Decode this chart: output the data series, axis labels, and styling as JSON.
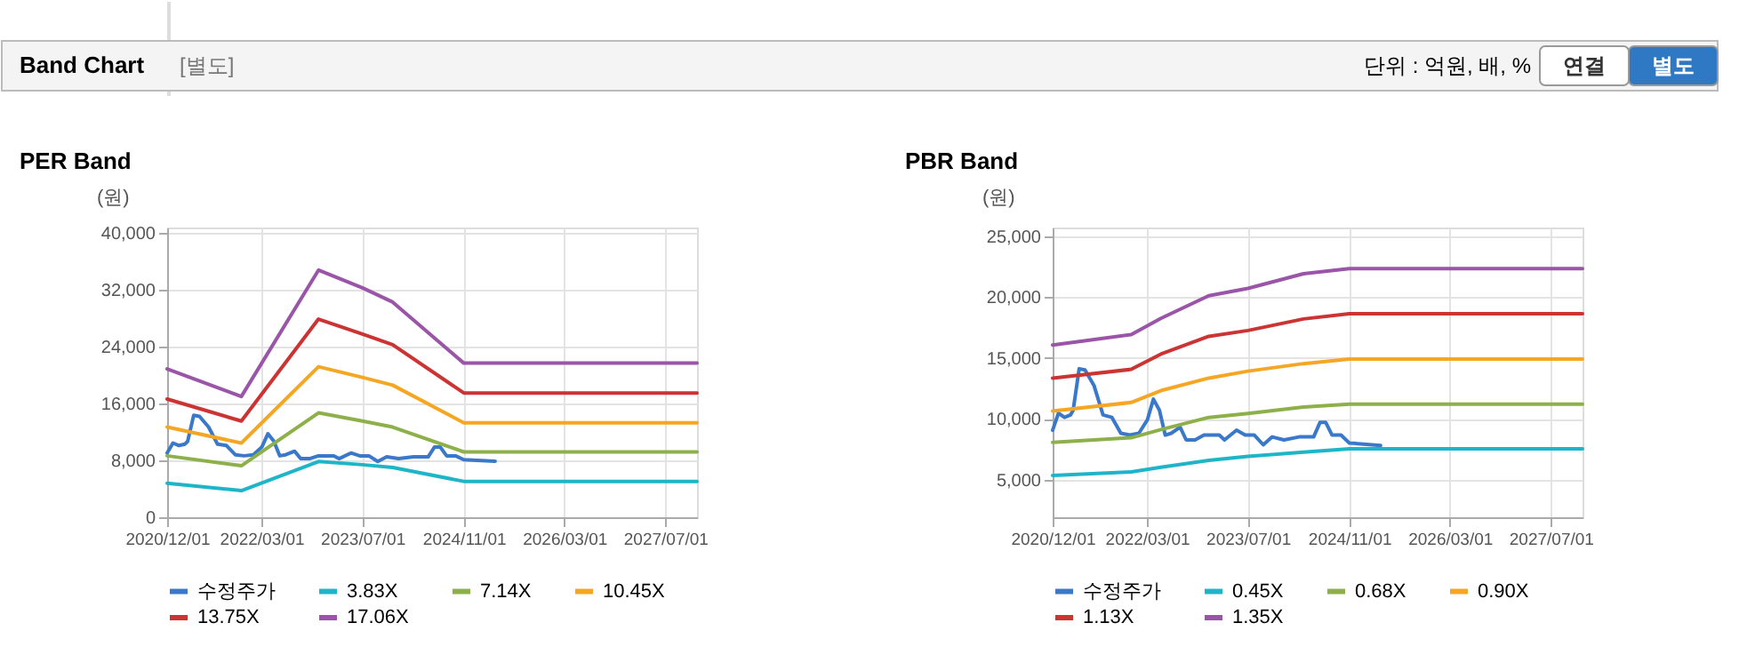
{
  "chart_data": [
    {
      "type": "line",
      "title": "PER Band",
      "annotations": [
        "Band Chart",
        "[별도]",
        "단위 : 억원, 배, %",
        "연결",
        "별도"
      ],
      "ylabel": "(원)",
      "xlim": [
        "2020-12-01",
        "2027-12-01"
      ],
      "xticks": [
        {
          "value": "2020-12-01",
          "label": "2020/12/01"
        },
        {
          "value": "2022-03-01",
          "label": "2022/03/01"
        },
        {
          "value": "2023-07-01",
          "label": "2023/07/01"
        },
        {
          "value": "2024-11-01",
          "label": "2024/11/01"
        },
        {
          "value": "2026-03-01",
          "label": "2026/03/01"
        },
        {
          "value": "2027-07-01",
          "label": "2027/07/01"
        }
      ],
      "ylim": [
        0,
        40800
      ],
      "yticks": [
        0,
        {
          "value": 8000,
          "label": "8,000"
        },
        {
          "value": 16000,
          "label": "16,000"
        },
        {
          "value": 24000,
          "label": "24,000"
        },
        {
          "value": 32000,
          "label": "32,000"
        },
        {
          "value": 40000,
          "label": "40,000"
        }
      ],
      "grid": true,
      "legend": "bottom",
      "marker": "none",
      "line_style": "solid",
      "series": [
        {
          "name": "수정주가",
          "color": "#3a78c9",
          "x": [
            "2020-12-01",
            "2020-12-29",
            "2021-01-27",
            "2021-02-25",
            "2021-03-10",
            "2021-04-08",
            "2021-05-06",
            "2021-06-19",
            "2021-08-01",
            "2021-09-13",
            "2021-10-26",
            "2021-12-08",
            "2022-01-21",
            "2022-03-03",
            "2022-04-01",
            "2022-04-30",
            "2022-05-28",
            "2022-06-26",
            "2022-08-08",
            "2022-09-06",
            "2022-10-19",
            "2022-12-01",
            "2023-02-13",
            "2023-03-10",
            "2023-05-07",
            "2023-06-18",
            "2023-08-01",
            "2023-09-13",
            "2023-10-26",
            "2023-12-22",
            "2024-03-04",
            "2024-05-13",
            "2024-06-13",
            "2024-07-10",
            "2024-08-10",
            "2024-09-22",
            "2024-11-01",
            "2025-04-01"
          ],
          "values": [
            9050,
            10450,
            10100,
            10300,
            10700,
            14350,
            14200,
            12700,
            10300,
            10100,
            8800,
            8650,
            8800,
            9900,
            11750,
            10700,
            8650,
            8800,
            9300,
            8250,
            8250,
            8650,
            8650,
            8250,
            9050,
            8650,
            8650,
            7850,
            8500,
            8250,
            8500,
            8500,
            9900,
            9900,
            8650,
            8650,
            8100,
            7900
          ]
        },
        {
          "name": "3.83X",
          "color": "#1fb5c9",
          "x": [
            "2020-12-01",
            "2021-11-24",
            "2022-12-01",
            "2023-07-01",
            "2023-11-24",
            "2024-11-01",
            "2027-12-01"
          ],
          "values": [
            4800,
            3750,
            7850,
            7400,
            7000,
            5050,
            5050
          ]
        },
        {
          "name": "7.14X",
          "color": "#8db04a",
          "x": [
            "2020-12-01",
            "2021-11-24",
            "2022-12-01",
            "2023-07-01",
            "2023-11-24",
            "2024-11-01",
            "2027-12-01"
          ],
          "values": [
            8650,
            7250,
            14700,
            13550,
            12700,
            9200,
            9200
          ]
        },
        {
          "name": "10.45X",
          "color": "#f5a623",
          "x": [
            "2020-12-01",
            "2021-11-24",
            "2022-12-01",
            "2023-07-01",
            "2023-11-24",
            "2024-11-01",
            "2027-12-01"
          ],
          "values": [
            12700,
            10450,
            21200,
            19700,
            18600,
            13300,
            13300
          ]
        },
        {
          "name": "13.75X",
          "color": "#cc3333",
          "x": [
            "2020-12-01",
            "2021-11-24",
            "2022-12-01",
            "2023-07-01",
            "2023-11-24",
            "2024-11-01",
            "2027-12-01"
          ],
          "values": [
            16650,
            13550,
            27900,
            25800,
            24300,
            17500,
            17500
          ]
        },
        {
          "name": "17.06X",
          "color": "#9a55a8",
          "x": [
            "2020-12-01",
            "2021-11-24",
            "2022-12-01",
            "2023-07-01",
            "2023-11-24",
            "2024-11-01",
            "2027-12-01"
          ],
          "values": [
            20900,
            17000,
            34800,
            32300,
            30300,
            21700,
            21700
          ]
        }
      ]
    },
    {
      "type": "line",
      "title": "PBR Band",
      "ylabel": "(원)",
      "xlim": [
        "2020-12-01",
        "2027-12-01"
      ],
      "xticks": [
        {
          "value": "2020-12-01",
          "label": "2020/12/01"
        },
        {
          "value": "2022-03-01",
          "label": "2022/03/01"
        },
        {
          "value": "2023-07-01",
          "label": "2023/07/01"
        },
        {
          "value": "2024-11-01",
          "label": "2024/11/01"
        },
        {
          "value": "2026-03-01",
          "label": "2026/03/01"
        },
        {
          "value": "2027-07-01",
          "label": "2027/07/01"
        }
      ],
      "ylim": [
        1900,
        25700
      ],
      "yticks": [
        {
          "value": 5000,
          "label": "5,000"
        },
        {
          "value": 10000,
          "label": "10,000"
        },
        {
          "value": 15000,
          "label": "15,000"
        },
        {
          "value": 20000,
          "label": "20,000"
        },
        {
          "value": 25000,
          "label": "25,000"
        }
      ],
      "grid": true,
      "legend": "bottom",
      "marker": "none",
      "line_style": "solid",
      "series": [
        {
          "name": "수정주가",
          "color": "#3a78c9",
          "x": [
            "2020-12-01",
            "2020-12-29",
            "2021-01-27",
            "2021-02-25",
            "2021-03-10",
            "2021-04-08",
            "2021-05-06",
            "2021-06-19",
            "2021-08-01",
            "2021-09-13",
            "2021-10-26",
            "2021-12-08",
            "2022-01-21",
            "2022-03-03",
            "2022-04-01",
            "2022-04-30",
            "2022-05-28",
            "2022-06-26",
            "2022-08-08",
            "2022-09-06",
            "2022-10-19",
            "2022-12-01",
            "2023-02-13",
            "2023-03-10",
            "2023-05-07",
            "2023-06-18",
            "2023-08-01",
            "2023-09-13",
            "2023-10-26",
            "2023-12-22",
            "2024-03-04",
            "2024-05-13",
            "2024-06-13",
            "2024-07-10",
            "2024-08-10",
            "2024-09-22",
            "2024-11-01",
            "2025-04-01"
          ],
          "values": [
            9050,
            10450,
            10100,
            10300,
            10700,
            14100,
            14000,
            12700,
            10300,
            10100,
            8800,
            8650,
            8800,
            9900,
            11600,
            10700,
            8650,
            8800,
            9300,
            8250,
            8250,
            8650,
            8650,
            8250,
            9050,
            8650,
            8650,
            7850,
            8500,
            8250,
            8500,
            8500,
            9700,
            9700,
            8650,
            8650,
            8000,
            7800
          ]
        },
        {
          "name": "0.45X",
          "color": "#1fb5c9",
          "x": [
            "2020-12-01",
            "2021-12-15",
            "2022-05-07",
            "2022-12-24",
            "2023-07-01",
            "2024-03-25",
            "2024-11-01",
            "2027-12-01"
          ],
          "values": [
            5330,
            5620,
            6000,
            6570,
            6900,
            7240,
            7520,
            7520
          ]
        },
        {
          "name": "0.68X",
          "color": "#8db04a",
          "x": [
            "2020-12-01",
            "2021-12-15",
            "2022-05-07",
            "2022-12-24",
            "2023-07-01",
            "2024-03-25",
            "2024-11-01",
            "2027-12-01"
          ],
          "values": [
            8050,
            8430,
            9100,
            10100,
            10430,
            10950,
            11190,
            11190
          ]
        },
        {
          "name": "0.90X",
          "color": "#f5a623",
          "x": [
            "2020-12-01",
            "2021-12-15",
            "2022-05-07",
            "2022-12-24",
            "2023-07-01",
            "2024-03-25",
            "2024-11-01",
            "2027-12-01"
          ],
          "values": [
            10620,
            11330,
            12300,
            13330,
            13900,
            14520,
            14900,
            14900
          ]
        },
        {
          "name": "1.13X",
          "color": "#cc3333",
          "x": [
            "2020-12-01",
            "2021-12-15",
            "2022-05-07",
            "2022-12-24",
            "2023-07-01",
            "2024-03-25",
            "2024-11-01",
            "2027-12-01"
          ],
          "values": [
            13330,
            14050,
            15300,
            16760,
            17240,
            18190,
            18620,
            18620
          ]
        },
        {
          "name": "1.35X",
          "color": "#9a55a8",
          "x": [
            "2020-12-01",
            "2021-12-15",
            "2022-05-07",
            "2022-12-24",
            "2023-07-01",
            "2024-03-25",
            "2024-11-01",
            "2027-12-01"
          ],
          "values": [
            16050,
            16900,
            18240,
            20100,
            20700,
            21900,
            22330,
            22330
          ]
        }
      ]
    }
  ]
}
